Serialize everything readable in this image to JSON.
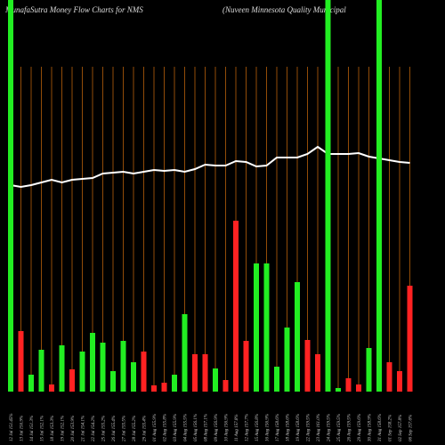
{
  "chart_data": {
    "type": "bar_line",
    "title": "MunafaSutra  Money Flow  Charts for NMS",
    "subtitle": "(Nuveen  Minnesota  Quality Municipal",
    "categories": [
      "12 Jul 151.45%",
      "13 Jul 150.9%",
      "14 Jul 151.3%",
      "15 Jul 152.1%",
      "18 Jul 153.3%",
      "19 Jul 152.1%",
      "20 Jul 153.9%",
      "21 Jul 154.1%",
      "22 Jul 154.2%",
      "25 Jul 155.2%",
      "26 Jul 155.4%",
      "27 Jul 155.5%",
      "28 Jul 155.2%",
      "29 Jul 155.4%",
      "01 Aug 155.9%",
      "02 Aug 155.8%",
      "03 Aug 155.9%",
      "04 Aug 155.5%",
      "05 Aug 156.1%",
      "08 Aug 157.1%",
      "09 Aug 156.9%",
      "10 Aug 156.9%",
      "11 Aug 157.8%",
      "12 Aug 157.7%",
      "15 Aug 156.8%",
      "16 Aug 156.9%",
      "17 Aug 158.6%",
      "18 Aug 158.6%",
      "19 Aug 158.6%",
      "22 Aug 159.5%",
      "23 Aug 161.0%",
      "24 Aug 159.5%",
      "25 Aug 159.5%",
      "26 Aug 159.5%",
      "29 Aug 159.6%",
      "30 Aug 158.9%",
      "31 Aug 158.6%",
      "01 Sep 158.2%",
      "02 Sep 157.8%",
      "06 Sep 157.6%"
    ],
    "values": [
      5,
      68,
      19,
      47,
      8,
      52,
      25,
      45,
      66,
      55,
      23,
      57,
      33,
      45,
      7,
      10,
      19,
      87,
      42,
      42,
      26,
      13,
      192,
      57,
      144,
      144,
      28,
      72,
      123,
      58,
      42,
      20,
      4,
      15,
      8,
      49,
      30,
      33,
      23,
      119
    ],
    "colors": [
      "#22ee22",
      "#ff2222",
      "#22ee22",
      "#22ee22",
      "#ff2222",
      "#22ee22",
      "#ff2222",
      "#22ee22",
      "#22ee22",
      "#22ee22",
      "#22ee22",
      "#22ee22",
      "#22ee22",
      "#ff2222",
      "#ff2222",
      "#ff2222",
      "#22ee22",
      "#22ee22",
      "#ff2222",
      "#ff2222",
      "#22ee22",
      "#ff2222",
      "#ff2222",
      "#ff2222",
      "#22ee22",
      "#22ee22",
      "#22ee22",
      "#22ee22",
      "#22ee22",
      "#ff2222",
      "#ff2222",
      "#22ee22",
      "#22ee22",
      "#ff2222",
      "#ff2222",
      "#22ee22",
      "#22ee22",
      "#ff2222",
      "#ff2222",
      "#ff2222"
    ],
    "line_values": [
      232,
      230,
      232,
      235,
      238,
      235,
      238,
      239,
      240,
      245,
      246,
      247,
      245,
      247,
      249,
      248,
      249,
      247,
      250,
      255,
      254,
      254,
      259,
      258,
      253,
      254,
      263,
      263,
      263,
      267,
      275,
      267,
      267,
      267,
      268,
      264,
      262,
      260,
      258,
      257
    ],
    "line_color": "#ffffff",
    "highlights": [
      0,
      31,
      36
    ],
    "highlight_color": "#22ee22",
    "ylim": [
      0,
      300
    ]
  }
}
